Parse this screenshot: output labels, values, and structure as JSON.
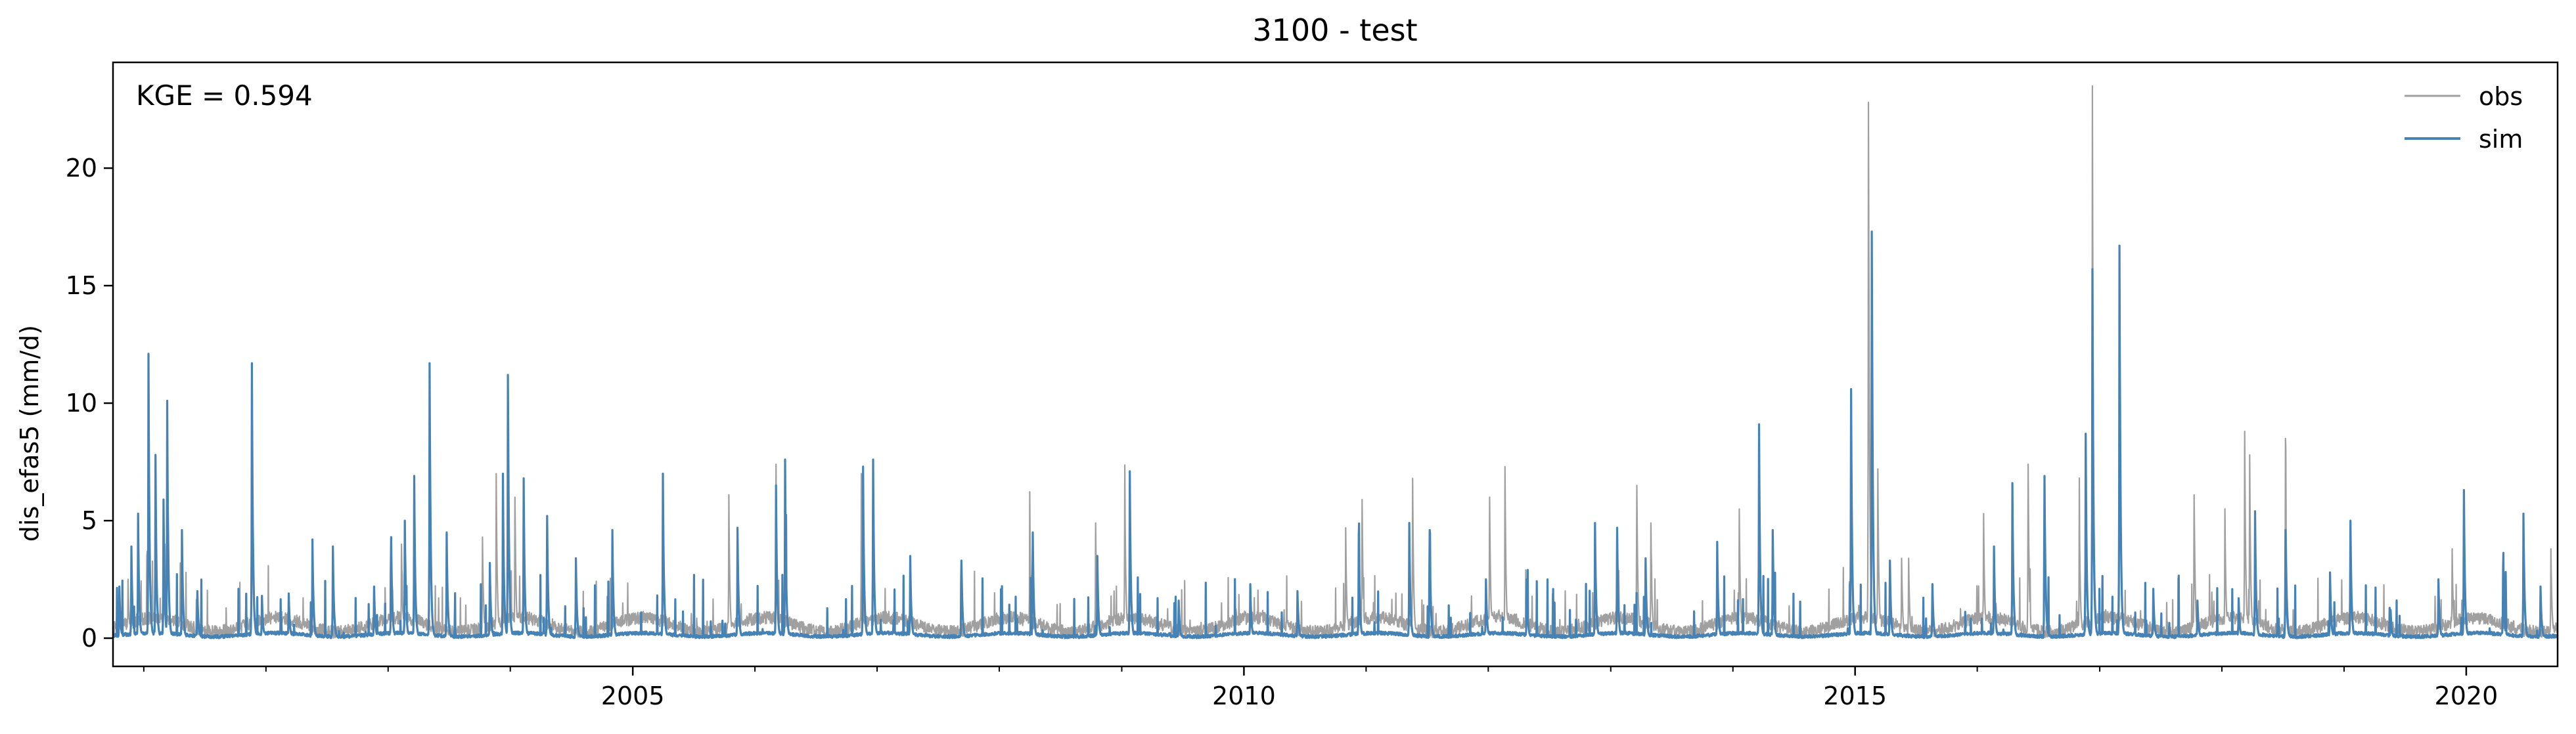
{
  "chart_data": {
    "type": "line",
    "title": "3100 - test",
    "xlabel": "",
    "ylabel": "dis_efas5 (mm/d)",
    "annotation": "KGE = 0.594",
    "x_range": [
      "2000-10-01",
      "2020-09-30"
    ],
    "ylim": [
      -1.2,
      24.5
    ],
    "y_ticks": [
      0,
      5,
      10,
      15,
      20
    ],
    "y_tick_labels": [
      "0",
      "5",
      "10",
      "15",
      "20"
    ],
    "x_ticks": [
      "2005-01-01",
      "2010-01-01",
      "2015-01-01",
      "2020-01-01"
    ],
    "x_tick_labels": [
      "2005",
      "2010",
      "2015",
      "2020"
    ],
    "grid": false,
    "legend_position": "top-right",
    "series": [
      {
        "name": "obs",
        "color": "#a0a0a0",
        "baseline": 0.6,
        "peaks": [
          [
            "2000-11-15",
            2.5
          ],
          [
            "2001-01-10",
            3.5
          ],
          [
            "2001-03-05",
            4.0
          ],
          [
            "2001-04-20",
            3.2
          ],
          [
            "2001-11-20",
            7.5
          ],
          [
            "2003-02-10",
            4.0
          ],
          [
            "2003-03-20",
            3.0
          ],
          [
            "2003-10-10",
            4.3
          ],
          [
            "2003-11-20",
            7.0
          ],
          [
            "2004-01-15",
            6.0
          ],
          [
            "2005-10-15",
            6.1
          ],
          [
            "2006-03-05",
            7.4
          ],
          [
            "2006-11-15",
            7.0
          ],
          [
            "2007-04-10",
            3.0
          ],
          [
            "2008-04-01",
            5.6
          ],
          [
            "2008-10-15",
            4.9
          ],
          [
            "2009-01-10",
            6.8
          ],
          [
            "2010-11-01",
            4.7
          ],
          [
            "2010-12-20",
            5.9
          ],
          [
            "2011-05-20",
            6.8
          ],
          [
            "2012-01-05",
            6.0
          ],
          [
            "2012-02-20",
            7.3
          ],
          [
            "2013-03-20",
            6.5
          ],
          [
            "2013-05-01",
            4.9
          ],
          [
            "2014-01-20",
            5.5
          ],
          [
            "2015-02-10",
            22.8
          ],
          [
            "2015-03-10",
            7.2
          ],
          [
            "2015-05-20",
            3.4
          ],
          [
            "2015-06-10",
            3.4
          ],
          [
            "2016-01-20",
            5.3
          ],
          [
            "2016-06-01",
            7.4
          ],
          [
            "2016-11-01",
            5.6
          ],
          [
            "2016-12-10",
            23.5
          ],
          [
            "2017-10-10",
            6.1
          ],
          [
            "2018-01-10",
            5.5
          ],
          [
            "2018-03-10",
            8.8
          ],
          [
            "2018-03-25",
            7.8
          ],
          [
            "2018-07-10",
            8.5
          ],
          [
            "2019-11-20",
            3.8
          ],
          [
            "2020-09-10",
            3.8
          ]
        ]
      },
      {
        "name": "sim",
        "color": "#4682b4",
        "baseline": 0.15,
        "peaks": [
          [
            "2000-10-20",
            2.2
          ],
          [
            "2000-11-25",
            3.9
          ],
          [
            "2000-12-15",
            5.3
          ],
          [
            "2001-01-15",
            12.1
          ],
          [
            "2001-02-05",
            7.8
          ],
          [
            "2001-03-01",
            5.9
          ],
          [
            "2001-03-12",
            10.1
          ],
          [
            "2001-04-25",
            4.6
          ],
          [
            "2001-06-10",
            2.0
          ],
          [
            "2001-11-20",
            11.7
          ],
          [
            "2001-12-20",
            1.8
          ],
          [
            "2002-03-10",
            1.9
          ],
          [
            "2002-05-20",
            4.2
          ],
          [
            "2002-07-20",
            3.9
          ],
          [
            "2002-11-20",
            2.2
          ],
          [
            "2003-01-10",
            4.3
          ],
          [
            "2003-02-20",
            5.0
          ],
          [
            "2003-03-20",
            6.9
          ],
          [
            "2003-05-05",
            11.7
          ],
          [
            "2003-06-25",
            4.5
          ],
          [
            "2003-11-01",
            3.2
          ],
          [
            "2003-12-10",
            7.0
          ],
          [
            "2003-12-25",
            11.2
          ],
          [
            "2004-02-10",
            6.8
          ],
          [
            "2004-04-20",
            5.2
          ],
          [
            "2004-07-15",
            3.4
          ],
          [
            "2004-11-01",
            4.6
          ],
          [
            "2005-04-01",
            7.0
          ],
          [
            "2005-11-10",
            4.7
          ],
          [
            "2006-03-05",
            6.5
          ],
          [
            "2006-04-01",
            7.6
          ],
          [
            "2006-11-20",
            7.3
          ],
          [
            "2006-12-20",
            7.6
          ],
          [
            "2007-04-10",
            3.5
          ],
          [
            "2007-09-10",
            3.3
          ],
          [
            "2008-04-10",
            4.5
          ],
          [
            "2008-10-20",
            3.5
          ],
          [
            "2009-01-25",
            7.1
          ],
          [
            "2009-06-20",
            1.6
          ],
          [
            "2010-01-20",
            2.3
          ],
          [
            "2010-06-10",
            2.0
          ],
          [
            "2010-12-10",
            4.4
          ],
          [
            "2011-05-10",
            4.9
          ],
          [
            "2011-07-10",
            4.6
          ],
          [
            "2011-12-25",
            2.5
          ],
          [
            "2012-04-25",
            2.5
          ],
          [
            "2012-11-15",
            4.9
          ],
          [
            "2013-01-20",
            4.7
          ],
          [
            "2013-04-15",
            3.4
          ],
          [
            "2013-11-15",
            4.1
          ],
          [
            "2014-03-20",
            9.1
          ],
          [
            "2014-04-30",
            4.6
          ],
          [
            "2014-12-20",
            10.6
          ],
          [
            "2015-02-20",
            17.3
          ],
          [
            "2015-04-15",
            3.3
          ],
          [
            "2015-08-20",
            2.3
          ],
          [
            "2016-02-20",
            3.9
          ],
          [
            "2016-04-15",
            6.6
          ],
          [
            "2016-07-20",
            6.9
          ],
          [
            "2016-11-20",
            8.7
          ],
          [
            "2016-12-10",
            15.7
          ],
          [
            "2017-03-01",
            16.7
          ],
          [
            "2017-06-10",
            2.1
          ],
          [
            "2017-10-20",
            1.6
          ],
          [
            "2018-02-20",
            1.7
          ],
          [
            "2018-04-10",
            5.4
          ],
          [
            "2018-07-10",
            4.6
          ],
          [
            "2018-11-20",
            2.8
          ],
          [
            "2019-01-20",
            5.0
          ],
          [
            "2019-05-20",
            1.2
          ],
          [
            "2019-10-10",
            2.5
          ],
          [
            "2019-12-25",
            6.3
          ],
          [
            "2020-04-20",
            3.0
          ],
          [
            "2020-06-20",
            5.3
          ],
          [
            "2020-08-10",
            2.2
          ]
        ]
      }
    ]
  }
}
